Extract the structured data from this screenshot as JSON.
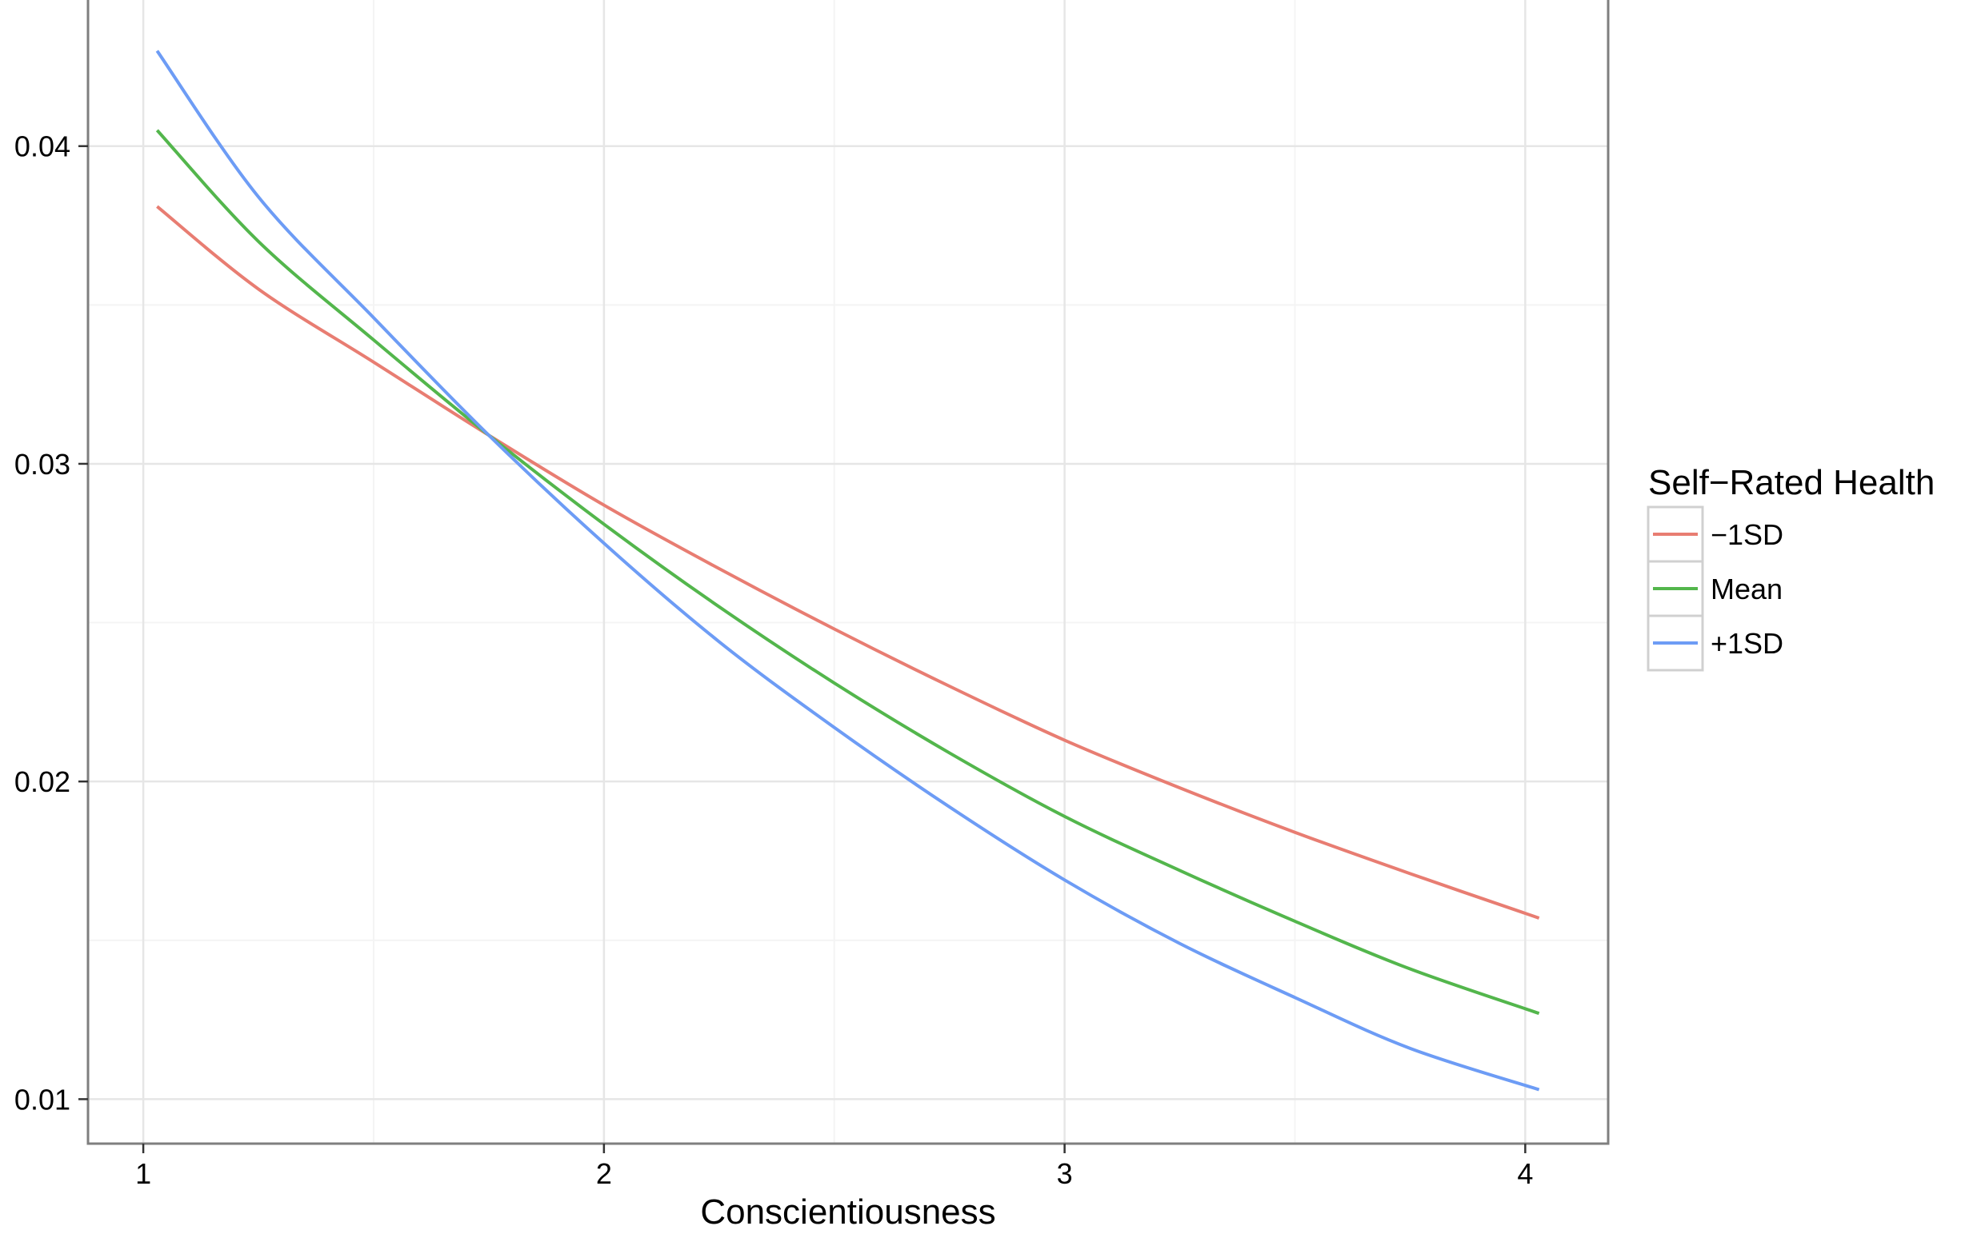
{
  "chart_data": {
    "type": "line",
    "title": "",
    "xlabel": "Conscientiousness",
    "ylabel": "",
    "xlim": [
      0.88,
      4.18
    ],
    "ylim": [
      0.0086,
      0.0446
    ],
    "x_ticks": [
      1,
      2,
      3,
      4
    ],
    "x_tick_labels": [
      "1",
      "2",
      "3",
      "4"
    ],
    "y_ticks": [
      0.01,
      0.02,
      0.03,
      0.04
    ],
    "y_tick_labels": [
      "0.01",
      "0.02",
      "0.03",
      "0.04"
    ],
    "grid": true,
    "legend": {
      "title": "Self−Rated Health",
      "position": "right"
    },
    "x": [
      1.03,
      1.25,
      1.5,
      1.75,
      2.0,
      2.25,
      2.5,
      2.75,
      3.0,
      3.25,
      3.5,
      3.75,
      4.03
    ],
    "series": [
      {
        "name": "−1SD",
        "color": "#E87D72",
        "values": [
          0.0381,
          0.0355,
          0.0332,
          0.0309,
          0.0287,
          0.0267,
          0.0248,
          0.023,
          0.0213,
          0.0198,
          0.0184,
          0.0171,
          0.0157
        ]
      },
      {
        "name": "Mean",
        "color": "#53B64C",
        "values": [
          0.0405,
          0.037,
          0.0339,
          0.0309,
          0.0281,
          0.0255,
          0.0231,
          0.0209,
          0.0189,
          0.0172,
          0.0156,
          0.0141,
          0.0127
        ]
      },
      {
        "name": "+1SD",
        "color": "#6D9CF5",
        "values": [
          0.043,
          0.0384,
          0.0346,
          0.0309,
          0.0275,
          0.0244,
          0.0217,
          0.0192,
          0.0169,
          0.0149,
          0.0132,
          0.0116,
          0.0103
        ]
      }
    ]
  }
}
